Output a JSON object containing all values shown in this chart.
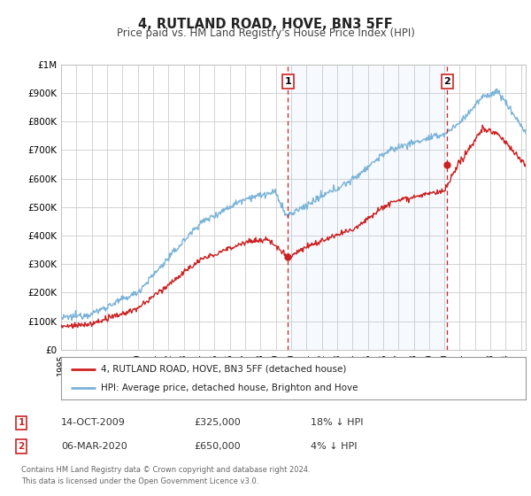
{
  "title": "4, RUTLAND ROAD, HOVE, BN3 5FF",
  "subtitle": "Price paid vs. HM Land Registry's House Price Index (HPI)",
  "legend_line1": "4, RUTLAND ROAD, HOVE, BN3 5FF (detached house)",
  "legend_line2": "HPI: Average price, detached house, Brighton and Hove",
  "transaction1_date": "14-OCT-2009",
  "transaction1_price": "£325,000",
  "transaction1_hpi": "18% ↓ HPI",
  "transaction1_year": 2009.8,
  "transaction1_value": 325000,
  "transaction2_date": "06-MAR-2020",
  "transaction2_price": "£650,000",
  "transaction2_hpi": "4% ↓ HPI",
  "transaction2_year": 2020.18,
  "transaction2_value": 650000,
  "footnote1": "Contains HM Land Registry data © Crown copyright and database right 2024.",
  "footnote2": "This data is licensed under the Open Government Licence v3.0.",
  "hpi_color": "#7ab3d8",
  "price_color": "#cc2222",
  "marker_color": "#cc2222",
  "vline_color": "#cc2222",
  "background_color": "#ffffff",
  "plot_bg_color": "#ffffff",
  "grid_color": "#cccccc",
  "ylim": [
    0,
    1000000
  ],
  "xlim_start": 1995.0,
  "xlim_end": 2025.3
}
